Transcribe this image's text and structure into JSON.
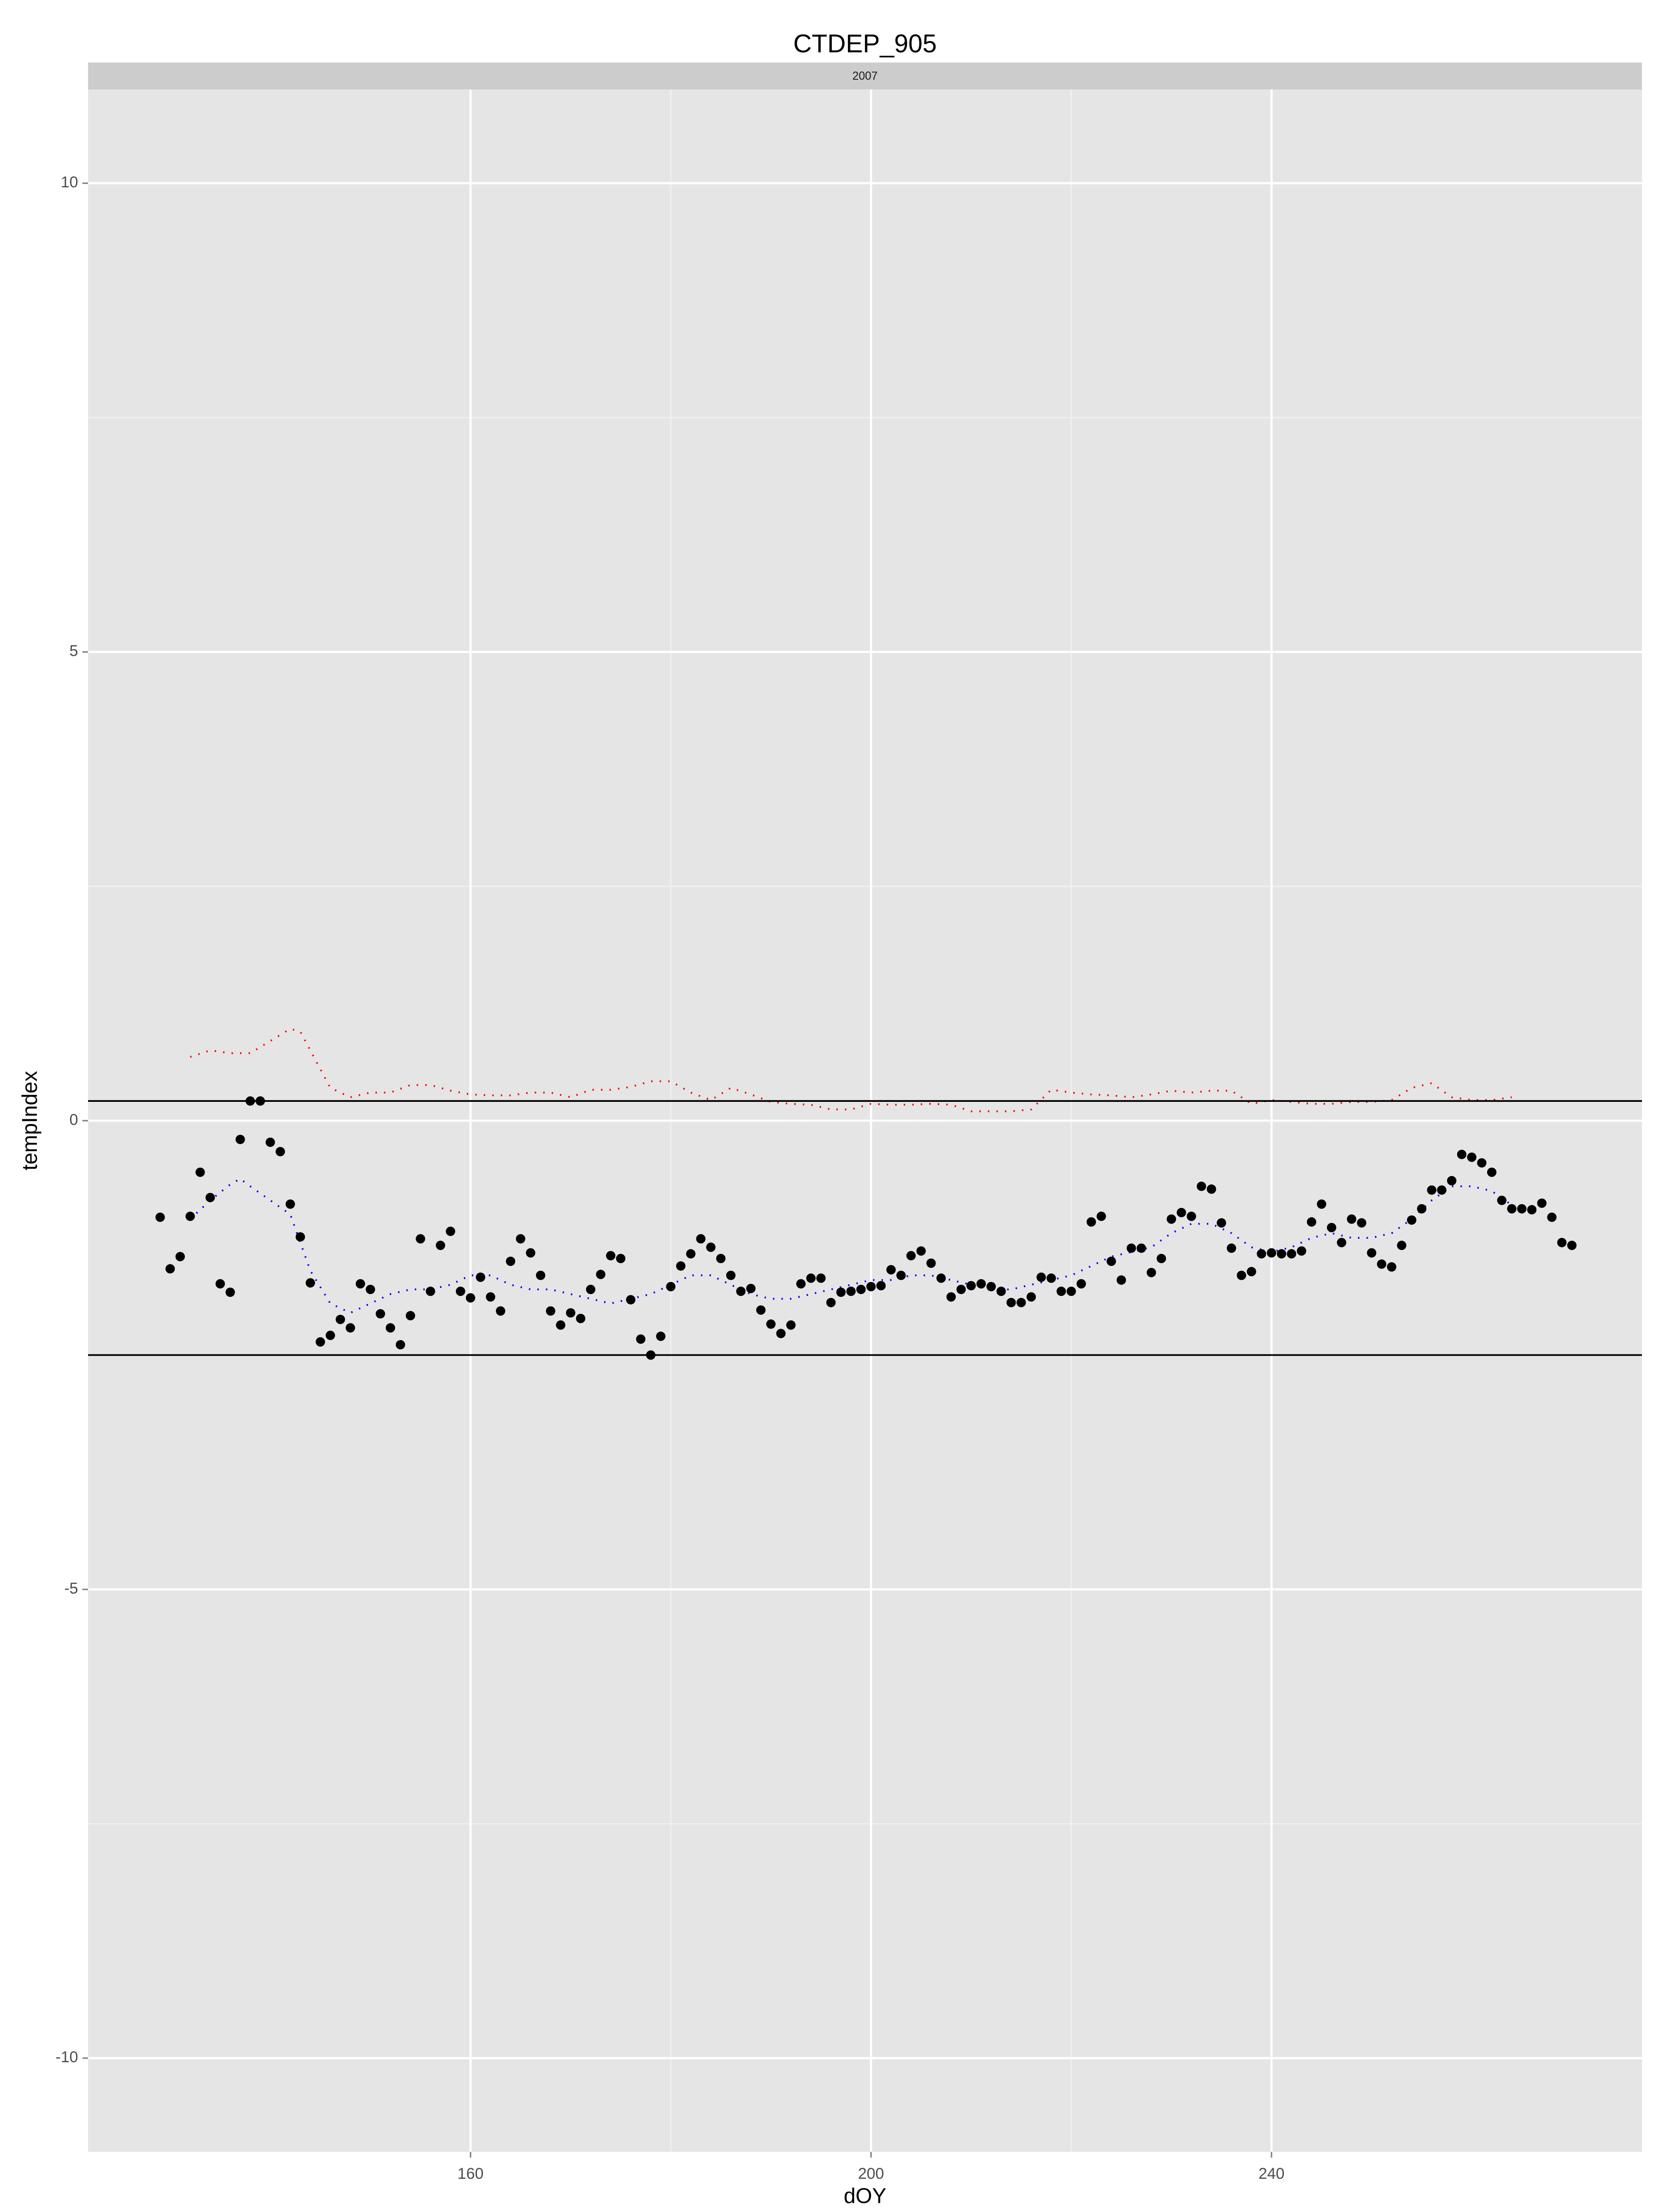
{
  "chart_data": {
    "type": "scatter",
    "title": "CTDEP_905",
    "facet_label": "2007",
    "xlabel": "dOY",
    "ylabel": "tempIndex",
    "xlim": [
      121.8,
      277
    ],
    "ylim": [
      -11,
      11
    ],
    "xticks": [
      160,
      200,
      240
    ],
    "yticks": [
      -10,
      -5,
      0,
      5,
      10
    ],
    "grid": true,
    "hlines": [
      0.21,
      -2.5
    ],
    "hline_color": "#000000",
    "series": [
      {
        "type": "scatter",
        "color": "#000000",
        "x": [
          129,
          130,
          131,
          132,
          133,
          134,
          135,
          136,
          137,
          138,
          139,
          140,
          141,
          142,
          143,
          144,
          145,
          146,
          147,
          148,
          149,
          150,
          151,
          152,
          153,
          154,
          155,
          156,
          157,
          158,
          159,
          160,
          161,
          162,
          163,
          164,
          165,
          166,
          167,
          168,
          169,
          170,
          171,
          172,
          173,
          174,
          175,
          176,
          177,
          178,
          179,
          180,
          181,
          182,
          183,
          184,
          185,
          186,
          187,
          188,
          189,
          190,
          191,
          192,
          193,
          194,
          195,
          196,
          197,
          198,
          199,
          200,
          201,
          202,
          203,
          204,
          205,
          206,
          207,
          208,
          209,
          210,
          211,
          212,
          213,
          214,
          215,
          216,
          217,
          218,
          219,
          220,
          221,
          222,
          223,
          224,
          225,
          226,
          227,
          228,
          229,
          230,
          231,
          232,
          233,
          234,
          235,
          236,
          237,
          238,
          239,
          240,
          241,
          242,
          243,
          244,
          245,
          246,
          247,
          248,
          249,
          250,
          251,
          252,
          253,
          254,
          255,
          256,
          257,
          258,
          259,
          260,
          261,
          262,
          263,
          264,
          265,
          266,
          267,
          268,
          269,
          270
        ],
        "values": [
          -1.03,
          -1.58,
          -1.45,
          -1.02,
          -0.55,
          -0.82,
          -1.74,
          -1.83,
          -0.2,
          0.21,
          0.21,
          -0.23,
          -0.33,
          -0.89,
          -1.24,
          -1.73,
          -2.36,
          -2.29,
          -2.12,
          -2.21,
          -1.74,
          -1.8,
          -2.06,
          -2.21,
          -2.39,
          -2.08,
          -1.26,
          -1.82,
          -1.33,
          -1.18,
          -1.82,
          -1.89,
          -1.67,
          -1.88,
          -2.03,
          -1.5,
          -1.26,
          -1.41,
          -1.65,
          -2.03,
          -2.18,
          -2.05,
          -2.11,
          -1.8,
          -1.64,
          -1.44,
          -1.47,
          -1.91,
          -2.33,
          -2.5,
          -2.3,
          -1.77,
          -1.55,
          -1.42,
          -1.26,
          -1.35,
          -1.47,
          -1.65,
          -1.82,
          -1.79,
          -2.02,
          -2.17,
          -2.27,
          -2.18,
          -1.74,
          -1.68,
          -1.68,
          -1.94,
          -1.83,
          -1.82,
          -1.8,
          -1.77,
          -1.76,
          -1.59,
          -1.65,
          -1.44,
          -1.39,
          -1.52,
          -1.68,
          -1.88,
          -1.8,
          -1.76,
          -1.74,
          -1.77,
          -1.82,
          -1.94,
          -1.94,
          -1.88,
          -1.67,
          -1.68,
          -1.82,
          -1.82,
          -1.74,
          -1.08,
          -1.02,
          -1.5,
          -1.7,
          -1.36,
          -1.36,
          -1.62,
          -1.47,
          -1.05,
          -0.98,
          -1.02,
          -0.7,
          -0.73,
          -1.09,
          -1.36,
          -1.65,
          -1.61,
          -1.42,
          -1.41,
          -1.42,
          -1.42,
          -1.39,
          -1.08,
          -0.89,
          -1.14,
          -1.3,
          -1.05,
          -1.09,
          -1.41,
          -1.53,
          -1.56,
          -1.33,
          -1.06,
          -0.94,
          -0.74,
          -0.74,
          -0.64,
          -0.36,
          -0.39,
          -0.45,
          -0.55,
          -0.85,
          -0.94,
          -0.94,
          -0.95,
          -0.88,
          -1.03,
          -1.3,
          -1.33
        ]
      },
      {
        "type": "dotted-line",
        "color": "#0000ff",
        "x": [
          132,
          134,
          136,
          137,
          138,
          140,
          142,
          144,
          146,
          148,
          150,
          152,
          154,
          156,
          158,
          160,
          162,
          164,
          166,
          168,
          170,
          172,
          174,
          176,
          178,
          180,
          182,
          184,
          186,
          188,
          190,
          192,
          194,
          196,
          198,
          200,
          202,
          204,
          206,
          208,
          210,
          212,
          214,
          216,
          218,
          220,
          222,
          224,
          226,
          228,
          230,
          232,
          234,
          236,
          238,
          240,
          242,
          244,
          246,
          248,
          250,
          252,
          254,
          256,
          258,
          260,
          262,
          264
        ],
        "values": [
          -1.05,
          -0.85,
          -0.68,
          -0.62,
          -0.7,
          -0.85,
          -1.0,
          -1.6,
          -1.95,
          -2.05,
          -1.95,
          -1.85,
          -1.8,
          -1.8,
          -1.75,
          -1.65,
          -1.65,
          -1.75,
          -1.8,
          -1.8,
          -1.85,
          -1.9,
          -1.95,
          -1.9,
          -1.85,
          -1.75,
          -1.65,
          -1.65,
          -1.75,
          -1.85,
          -1.9,
          -1.9,
          -1.85,
          -1.8,
          -1.75,
          -1.7,
          -1.7,
          -1.65,
          -1.65,
          -1.7,
          -1.75,
          -1.8,
          -1.8,
          -1.75,
          -1.7,
          -1.65,
          -1.55,
          -1.45,
          -1.4,
          -1.35,
          -1.2,
          -1.1,
          -1.1,
          -1.2,
          -1.35,
          -1.4,
          -1.35,
          -1.25,
          -1.2,
          -1.25,
          -1.25,
          -1.2,
          -1.05,
          -0.85,
          -0.7,
          -0.7,
          -0.75,
          -0.9
        ]
      },
      {
        "type": "dotted-line",
        "color": "#ff0000",
        "x": [
          132,
          134,
          136,
          138,
          140,
          142,
          143,
          144,
          146,
          148,
          150,
          152,
          154,
          156,
          158,
          160,
          162,
          164,
          166,
          168,
          170,
          172,
          174,
          176,
          178,
          180,
          182,
          184,
          186,
          188,
          190,
          192,
          194,
          196,
          198,
          200,
          202,
          204,
          206,
          208,
          210,
          212,
          214,
          216,
          218,
          220,
          222,
          224,
          226,
          228,
          230,
          232,
          234,
          236,
          238,
          240,
          242,
          244,
          246,
          248,
          250,
          252,
          254,
          256,
          258,
          260,
          262,
          264
        ],
        "values": [
          0.68,
          0.75,
          0.72,
          0.72,
          0.85,
          0.98,
          0.95,
          0.75,
          0.35,
          0.25,
          0.3,
          0.3,
          0.38,
          0.38,
          0.32,
          0.28,
          0.27,
          0.27,
          0.3,
          0.3,
          0.25,
          0.33,
          0.33,
          0.36,
          0.42,
          0.42,
          0.3,
          0.22,
          0.35,
          0.28,
          0.2,
          0.18,
          0.17,
          0.12,
          0.12,
          0.18,
          0.17,
          0.17,
          0.18,
          0.17,
          0.1,
          0.1,
          0.1,
          0.12,
          0.33,
          0.3,
          0.28,
          0.27,
          0.25,
          0.28,
          0.32,
          0.3,
          0.32,
          0.32,
          0.18,
          0.22,
          0.2,
          0.18,
          0.18,
          0.2,
          0.2,
          0.22,
          0.35,
          0.4,
          0.25,
          0.22,
          0.22,
          0.25
        ]
      }
    ]
  }
}
